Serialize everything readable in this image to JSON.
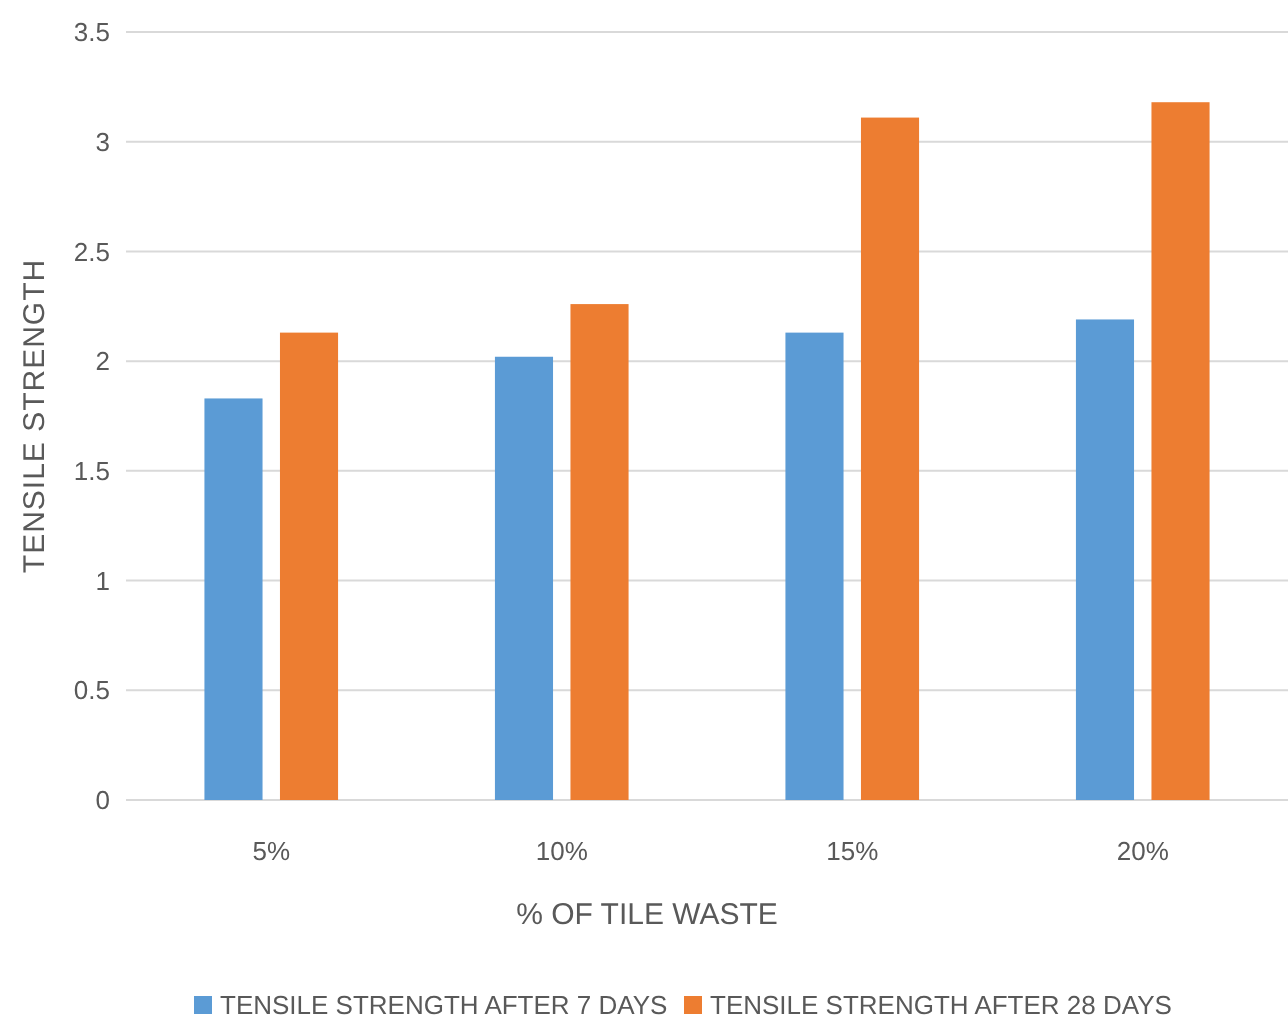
{
  "chart_data": {
    "type": "bar",
    "xlabel": "% OF TILE WASTE",
    "ylabel": "TENSILE STRENGTH",
    "categories": [
      "5%",
      "10%",
      "15%",
      "20%"
    ],
    "series": [
      {
        "name": "TENSILE STRENGTH AFTER 7 DAYS",
        "color": "#5b9bd5",
        "values": [
          1.83,
          2.02,
          2.13,
          2.19
        ]
      },
      {
        "name": "TENSILE STRENGTH AFTER 28 DAYS",
        "color": "#ed7d31",
        "values": [
          2.13,
          2.26,
          3.11,
          3.18
        ]
      }
    ],
    "ylim": [
      0,
      3.5
    ],
    "yticks": [
      0,
      0.5,
      1,
      1.5,
      2,
      2.5,
      3,
      3.5
    ],
    "grid": "y",
    "legend": "bottom"
  }
}
